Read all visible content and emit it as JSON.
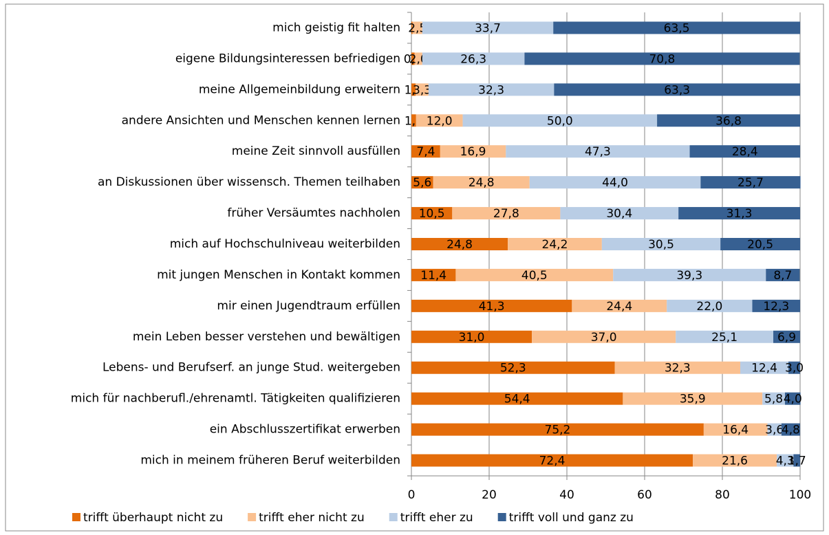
{
  "chart_data": {
    "type": "bar",
    "orientation": "horizontal",
    "stacked": true,
    "categories": [
      "mich geistig fit halten",
      "eigene Bildungsinteressen befriedigen",
      "meine Allgemeinbildung erweitern",
      "andere Ansichten und Menschen kennen lernen",
      "meine Zeit sinnvoll ausfüllen",
      "an Diskussionen über wissensch. Themen teilhaben",
      "früher Versäumtes nachholen",
      "mich auf Hochschulniveau weiterbilden",
      "mit jungen Menschen in Kontakt kommen",
      "mir einen Jugendtraum erfüllen",
      "mein Leben besser verstehen und bewältigen",
      "Lebens- und Berufserf. an junge Stud. weitergeben",
      "mich für nachberufl./ehrenamtl. Tätigkeiten qualifizieren",
      "ein Abschlusszertifikat erwerben",
      "mich in meinem früheren Beruf weiterbilden"
    ],
    "series": [
      {
        "name": "trifft überhaupt nicht zu",
        "color": "#E46C0A",
        "values": [
          0.3,
          0.8,
          1.1,
          1.2,
          7.4,
          5.6,
          10.5,
          24.8,
          11.4,
          41.3,
          31.0,
          52.3,
          54.4,
          75.2,
          72.4
        ],
        "value_labels": [
          null,
          "0,8",
          "1,1",
          "1,2",
          "7,4",
          "5,6",
          "10,5",
          "24,8",
          "11,4",
          "41,3",
          "31,0",
          "52,3",
          "54,4",
          "75,2",
          "72,4"
        ]
      },
      {
        "name": "trifft eher nicht zu",
        "color": "#FAC090",
        "values": [
          2.5,
          2.0,
          3.3,
          12.0,
          16.9,
          24.8,
          27.8,
          24.2,
          40.5,
          24.4,
          37.0,
          32.3,
          35.9,
          16.4,
          21.6
        ],
        "value_labels": [
          "2,5",
          "2,0",
          "3,3",
          "12,0",
          "16,9",
          "24,8",
          "27,8",
          "24,2",
          "40,5",
          "24,4",
          "37,0",
          "32,3",
          "35,9",
          "16,4",
          "21,6"
        ]
      },
      {
        "name": "trifft eher zu",
        "color": "#B9CDE5",
        "values": [
          33.7,
          26.3,
          32.3,
          50.0,
          47.3,
          44.0,
          30.4,
          30.5,
          39.3,
          22.0,
          25.1,
          12.4,
          5.8,
          3.6,
          4.3
        ],
        "value_labels": [
          "33,7",
          "26,3",
          "32,3",
          "50,0",
          "47,3",
          "44,0",
          "30,4",
          "30,5",
          "39,3",
          "22,0",
          "25,1",
          "12,4",
          "5,8",
          "3,6",
          "4,3"
        ]
      },
      {
        "name": "trifft voll und ganz zu",
        "color": "#376092",
        "values": [
          63.5,
          70.8,
          63.3,
          36.8,
          28.4,
          25.7,
          31.3,
          20.5,
          8.7,
          12.3,
          6.9,
          3.0,
          4.0,
          4.8,
          1.7
        ],
        "value_labels": [
          "63,5",
          "70,8",
          "63,3",
          "36,8",
          "28,4",
          "25,7",
          "31,3",
          "20,5",
          "8,7",
          "12,3",
          "6,9",
          "3,0",
          "4,0",
          "4,8",
          "1,7"
        ]
      }
    ],
    "xlim": [
      0,
      100
    ],
    "xticks": [
      0,
      20,
      40,
      60,
      80,
      100
    ],
    "grid": true,
    "legend": "bottom"
  }
}
